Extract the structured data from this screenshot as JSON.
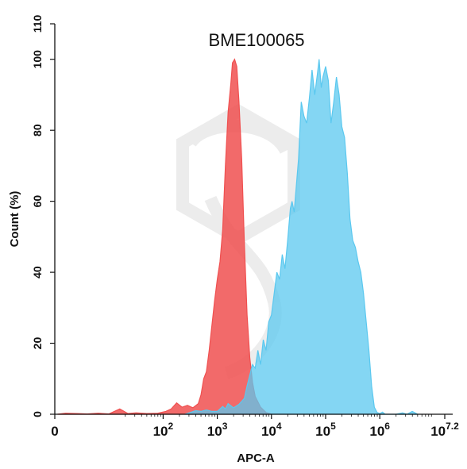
{
  "chart_data": {
    "type": "area",
    "title": "BME100065",
    "xlabel": "APC-A",
    "ylabel": "Count (%)",
    "x_scale": "log10",
    "xlim": [
      0,
      7.2
    ],
    "ylim": [
      0,
      110
    ],
    "y_ticks": [
      0,
      20,
      40,
      60,
      80,
      100,
      110
    ],
    "x_ticks": [
      {
        "value": 0,
        "base": "0",
        "sup": ""
      },
      {
        "value": 2,
        "base": "10",
        "sup": "2"
      },
      {
        "value": 3,
        "base": "10",
        "sup": "3"
      },
      {
        "value": 4,
        "base": "10",
        "sup": "4"
      },
      {
        "value": 5,
        "base": "10",
        "sup": "5"
      },
      {
        "value": 6,
        "base": "10",
        "sup": "6"
      },
      {
        "value": 7.2,
        "base": "10",
        "sup": "7.2"
      }
    ],
    "series": [
      {
        "color": "#f05050",
        "points": [
          [
            0.05,
            0
          ],
          [
            0.2,
            0.3
          ],
          [
            0.4,
            0.2
          ],
          [
            0.6,
            0.1
          ],
          [
            0.8,
            0.3
          ],
          [
            1.0,
            0.1
          ],
          [
            1.2,
            1.5
          ],
          [
            1.35,
            0.2
          ],
          [
            1.5,
            0.4
          ],
          [
            1.7,
            0.2
          ],
          [
            1.9,
            0.3
          ],
          [
            2.05,
            0.8
          ],
          [
            2.15,
            1.5
          ],
          [
            2.25,
            3.2
          ],
          [
            2.35,
            2.0
          ],
          [
            2.45,
            2.5
          ],
          [
            2.55,
            1.8
          ],
          [
            2.65,
            3.0
          ],
          [
            2.7,
            5.5
          ],
          [
            2.75,
            10
          ],
          [
            2.8,
            12
          ],
          [
            2.85,
            18
          ],
          [
            2.9,
            25
          ],
          [
            2.95,
            32
          ],
          [
            3.0,
            38
          ],
          [
            3.05,
            43
          ],
          [
            3.1,
            52
          ],
          [
            3.15,
            70
          ],
          [
            3.2,
            85
          ],
          [
            3.25,
            93
          ],
          [
            3.28,
            99
          ],
          [
            3.32,
            100
          ],
          [
            3.36,
            98
          ],
          [
            3.4,
            88
          ],
          [
            3.45,
            72
          ],
          [
            3.5,
            48
          ],
          [
            3.55,
            28
          ],
          [
            3.6,
            16
          ],
          [
            3.65,
            9
          ],
          [
            3.7,
            5
          ],
          [
            3.8,
            2
          ],
          [
            3.9,
            0.5
          ],
          [
            4.0,
            0
          ]
        ]
      },
      {
        "color": "#5bc8ef",
        "points": [
          [
            2.4,
            0
          ],
          [
            2.5,
            0.5
          ],
          [
            2.6,
            1.0
          ],
          [
            2.7,
            0.8
          ],
          [
            2.8,
            1.2
          ],
          [
            2.9,
            0.8
          ],
          [
            3.0,
            0.8
          ],
          [
            3.1,
            2.2
          ],
          [
            3.15,
            1.5
          ],
          [
            3.2,
            3.0
          ],
          [
            3.3,
            1.8
          ],
          [
            3.4,
            2.8
          ],
          [
            3.5,
            4.5
          ],
          [
            3.55,
            8
          ],
          [
            3.6,
            11
          ],
          [
            3.65,
            14
          ],
          [
            3.7,
            13
          ],
          [
            3.75,
            18
          ],
          [
            3.8,
            14
          ],
          [
            3.85,
            21
          ],
          [
            3.9,
            18
          ],
          [
            3.95,
            26
          ],
          [
            4.0,
            28
          ],
          [
            4.05,
            34
          ],
          [
            4.1,
            40
          ],
          [
            4.15,
            38
          ],
          [
            4.2,
            45
          ],
          [
            4.25,
            41
          ],
          [
            4.3,
            49
          ],
          [
            4.35,
            58
          ],
          [
            4.38,
            60
          ],
          [
            4.42,
            57
          ],
          [
            4.5,
            72
          ],
          [
            4.55,
            88
          ],
          [
            4.6,
            84
          ],
          [
            4.65,
            82
          ],
          [
            4.7,
            89
          ],
          [
            4.75,
            97
          ],
          [
            4.8,
            90
          ],
          [
            4.85,
            96
          ],
          [
            4.88,
            100
          ],
          [
            4.92,
            92
          ],
          [
            4.95,
            95
          ],
          [
            5.0,
            98
          ],
          [
            5.05,
            94
          ],
          [
            5.1,
            82
          ],
          [
            5.15,
            88
          ],
          [
            5.2,
            95
          ],
          [
            5.25,
            90
          ],
          [
            5.3,
            81
          ],
          [
            5.35,
            78
          ],
          [
            5.4,
            68
          ],
          [
            5.45,
            55
          ],
          [
            5.5,
            49
          ],
          [
            5.55,
            47
          ],
          [
            5.6,
            43
          ],
          [
            5.65,
            40
          ],
          [
            5.7,
            34
          ],
          [
            5.75,
            26
          ],
          [
            5.8,
            18
          ],
          [
            5.85,
            8
          ],
          [
            5.9,
            2
          ],
          [
            5.95,
            0.5
          ],
          [
            6.0,
            0.2
          ],
          [
            6.05,
            0.6
          ],
          [
            6.1,
            0
          ],
          [
            6.3,
            0
          ],
          [
            6.42,
            0.4
          ],
          [
            6.5,
            0
          ],
          [
            6.6,
            0.8
          ],
          [
            6.7,
            0
          ]
        ]
      }
    ]
  }
}
